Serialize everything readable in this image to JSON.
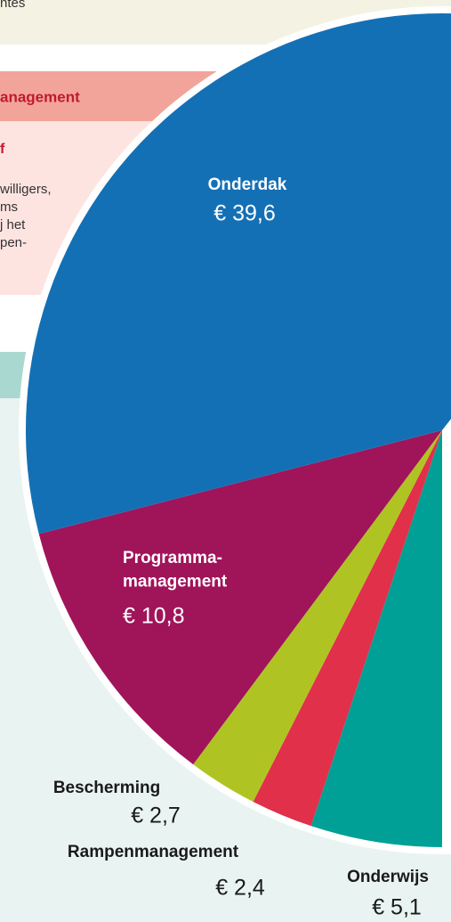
{
  "chart_data": {
    "type": "pie",
    "categories": [
      "Onderdak",
      "Programma-\nmanagement",
      "Bescherming",
      "Rampenmanagement",
      "Onderwijs"
    ],
    "values": [
      39.6,
      10.8,
      2.7,
      2.4,
      5.1
    ],
    "value_labels": [
      "€ 39,6",
      "€ 10,8",
      "€ 2,7",
      "€ 2,4",
      "€ 5,1"
    ],
    "colors": [
      "#1470b5",
      "#a0145a",
      "#afc423",
      "#e0304a",
      "#00a096"
    ]
  },
  "background_text": {
    "top": "ntes",
    "header": "anagement",
    "subheading": "f",
    "lines": [
      "willigers,",
      "ms",
      "j het",
      "pen-"
    ]
  }
}
